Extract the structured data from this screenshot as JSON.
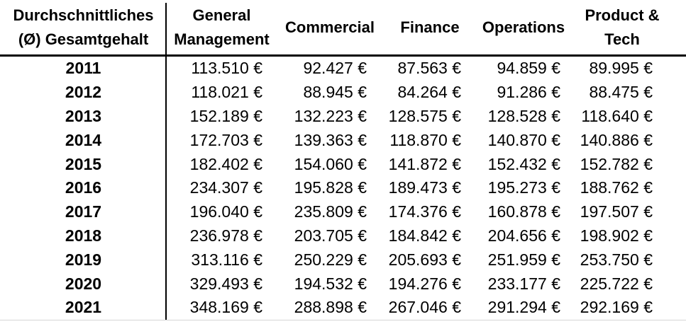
{
  "header": {
    "corner_lines": [
      "Durchschnittliches",
      "(Ø) Gesamtgehalt"
    ],
    "column_lines": {
      "general_management": [
        "General",
        "Management"
      ],
      "commercial": [
        "Commercial"
      ],
      "finance": [
        "Finance"
      ],
      "operations": [
        "Operations"
      ],
      "product_tech": [
        "Product &",
        "Tech"
      ]
    }
  },
  "rows": [
    {
      "year": "2011",
      "values": [
        "113.510 €",
        "92.427 €",
        "87.563 €",
        "94.859 €",
        "89.995 €"
      ]
    },
    {
      "year": "2012",
      "values": [
        "118.021 €",
        "88.945 €",
        "84.264 €",
        "91.286 €",
        "88.475 €"
      ]
    },
    {
      "year": "2013",
      "values": [
        "152.189 €",
        "132.223 €",
        "128.575 €",
        "128.528 €",
        "118.640 €"
      ]
    },
    {
      "year": "2014",
      "values": [
        "172.703 €",
        "139.363 €",
        "118.870 €",
        "140.870 €",
        "140.886 €"
      ]
    },
    {
      "year": "2015",
      "values": [
        "182.402 €",
        "154.060 €",
        "141.872 €",
        "152.432 €",
        "152.782 €"
      ]
    },
    {
      "year": "2016",
      "values": [
        "234.307 €",
        "195.828 €",
        "189.473 €",
        "195.273 €",
        "188.762 €"
      ]
    },
    {
      "year": "2017",
      "values": [
        "196.040 €",
        "235.809 €",
        "174.376 €",
        "160.878 €",
        "197.507 €"
      ]
    },
    {
      "year": "2018",
      "values": [
        "236.978 €",
        "203.705 €",
        "184.842 €",
        "204.656 €",
        "198.902 €"
      ]
    },
    {
      "year": "2019",
      "values": [
        "313.116 €",
        "250.229 €",
        "205.693 €",
        "251.959 €",
        "253.750 €"
      ]
    },
    {
      "year": "2020",
      "values": [
        "329.493 €",
        "194.532 €",
        "194.276 €",
        "233.177 €",
        "225.722 €"
      ]
    },
    {
      "year": "2021",
      "values": [
        "348.169 €",
        "288.898 €",
        "267.046 €",
        "291.294 €",
        "292.169 €"
      ]
    }
  ],
  "colors": {
    "text": "#000000",
    "border": "#000000",
    "bottom_gridline": "#d6d6d6",
    "background": "#ffffff"
  },
  "chart_data": {
    "type": "table",
    "title": "Durchschnittliches (Ø) Gesamtgehalt",
    "unit": "EUR",
    "number_format": "#.##0 €",
    "categories": [
      "2011",
      "2012",
      "2013",
      "2014",
      "2015",
      "2016",
      "2017",
      "2018",
      "2019",
      "2020",
      "2021"
    ],
    "series": [
      {
        "name": "General Management",
        "values": [
          113510,
          118021,
          152189,
          172703,
          182402,
          234307,
          196040,
          236978,
          313116,
          329493,
          348169
        ]
      },
      {
        "name": "Commercial",
        "values": [
          92427,
          88945,
          132223,
          139363,
          154060,
          195828,
          235809,
          203705,
          250229,
          194532,
          288898
        ]
      },
      {
        "name": "Finance",
        "values": [
          87563,
          84264,
          128575,
          118870,
          141872,
          189473,
          174376,
          184842,
          205693,
          194276,
          267046
        ]
      },
      {
        "name": "Operations",
        "values": [
          94859,
          91286,
          128528,
          140870,
          152432,
          195273,
          160878,
          204656,
          251959,
          233177,
          291294
        ]
      },
      {
        "name": "Product & Tech",
        "values": [
          89995,
          88475,
          118640,
          140886,
          152782,
          188762,
          197507,
          198902,
          253750,
          225722,
          292169
        ]
      }
    ]
  }
}
